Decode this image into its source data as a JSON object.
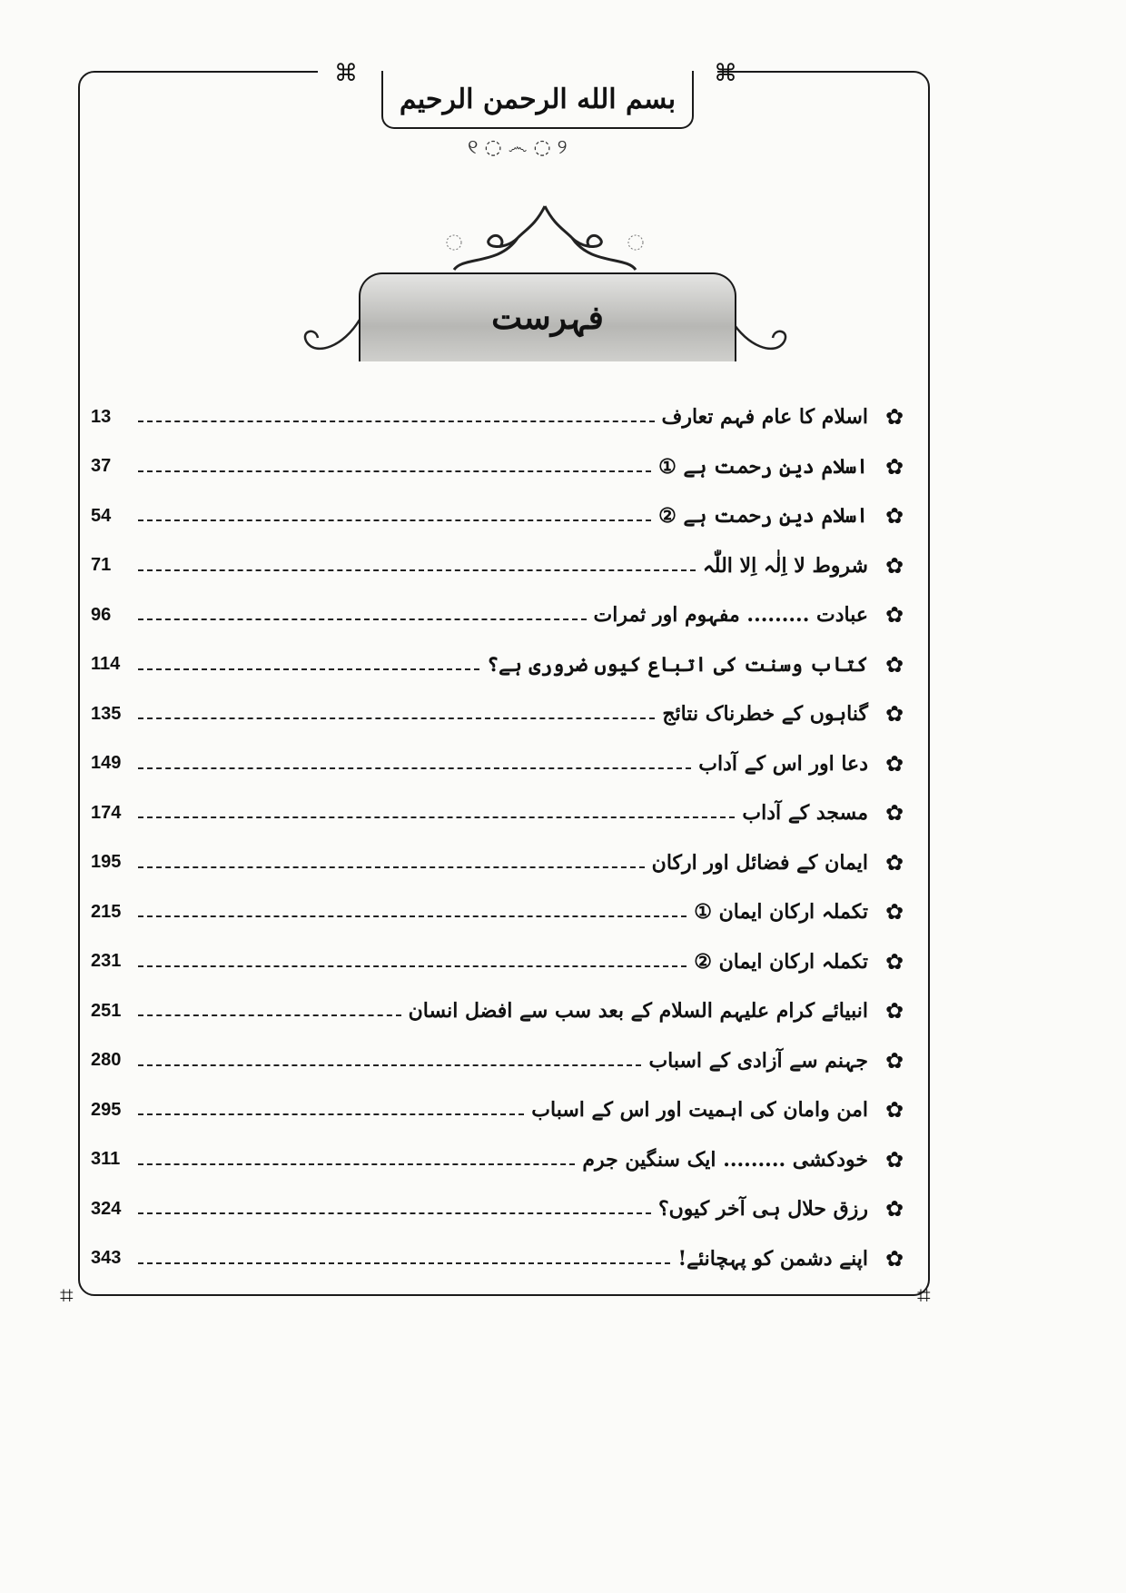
{
  "header": {
    "bismillah": "بسم الله الرحمن الرحيم"
  },
  "title": "فہرست",
  "icons": {
    "bullet": "flower-icon",
    "ornament": "knot-ornament-icon"
  },
  "entries": [
    {
      "title": "اسلام کا عام فہم تعارف",
      "page": "13"
    },
    {
      "title": "اسلام دینِ رحمت ہے ①",
      "page": "37"
    },
    {
      "title": "اسلام دینِ رحمت ہے ②",
      "page": "54"
    },
    {
      "title": "شروط لا اِلٰہ اِلا اللّٰہ",
      "page": "71"
    },
    {
      "title": "عبادت ......... مفہوم اور ثمرات",
      "page": "96"
    },
    {
      "title": "کتاب وسنت کی اتباع کیوں ضروری ہے؟",
      "page": "114"
    },
    {
      "title": "گناہوں کے خطرناک نتائج",
      "page": "135"
    },
    {
      "title": "دعا اور اس کے آداب",
      "page": "149"
    },
    {
      "title": "مسجد کے آداب",
      "page": "174"
    },
    {
      "title": "ایمان کے فضائل اور ارکان",
      "page": "195"
    },
    {
      "title": "تکملہ ارکان ایمان ①",
      "page": "215"
    },
    {
      "title": "تکملہ ارکان ایمان ②",
      "page": "231"
    },
    {
      "title": "انبیائے کرام علیہم السلام کے بعد سب سے افضل انسان",
      "page": "251"
    },
    {
      "title": "جہنم سے آزادی کے اسباب",
      "page": "280"
    },
    {
      "title": "امن وامان کی اہمیت اور اس کے اسباب",
      "page": "295"
    },
    {
      "title": "خودکشی ......... ایک سنگین جرم",
      "page": "311"
    },
    {
      "title": "رزق حلال ہی آخر کیوں؟",
      "page": "324"
    },
    {
      "title": "اپنے دشمن کو پہچانئے!",
      "page": "343"
    }
  ]
}
